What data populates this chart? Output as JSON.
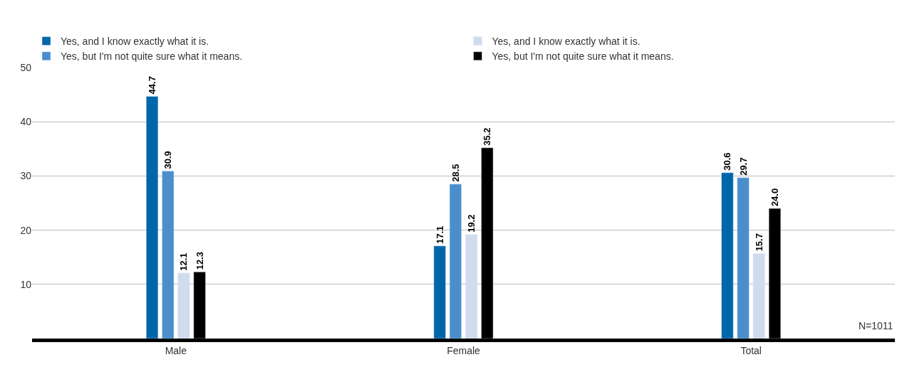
{
  "chart_data": {
    "type": "bar",
    "categories": [
      "Male",
      "Female",
      "Total"
    ],
    "series": [
      {
        "name": "Yes, and I know exactly what it is.",
        "color": "#0066aa",
        "values": [
          44.7,
          17.1,
          30.6
        ]
      },
      {
        "name": "Yes, but I'm not quite sure what it means.",
        "color": "#4a8fcc",
        "values": [
          30.9,
          28.5,
          29.7
        ]
      },
      {
        "name": "Yes, and I know exactly what it is.",
        "color": "#cfdcee",
        "values": [
          12.1,
          19.2,
          15.7
        ]
      },
      {
        "name": "Yes, but I'm not quite sure what it means.",
        "color": "#000000",
        "values": [
          12.3,
          35.2,
          24.0
        ],
        "value_labels": [
          "12.3",
          "35.2",
          "24.0"
        ]
      }
    ],
    "ylim": [
      0,
      50
    ],
    "yticks": [
      10,
      20,
      30,
      40,
      50
    ],
    "grid": "y",
    "legend": "top",
    "data_labels": true,
    "annotations": [
      "N=1011"
    ]
  }
}
